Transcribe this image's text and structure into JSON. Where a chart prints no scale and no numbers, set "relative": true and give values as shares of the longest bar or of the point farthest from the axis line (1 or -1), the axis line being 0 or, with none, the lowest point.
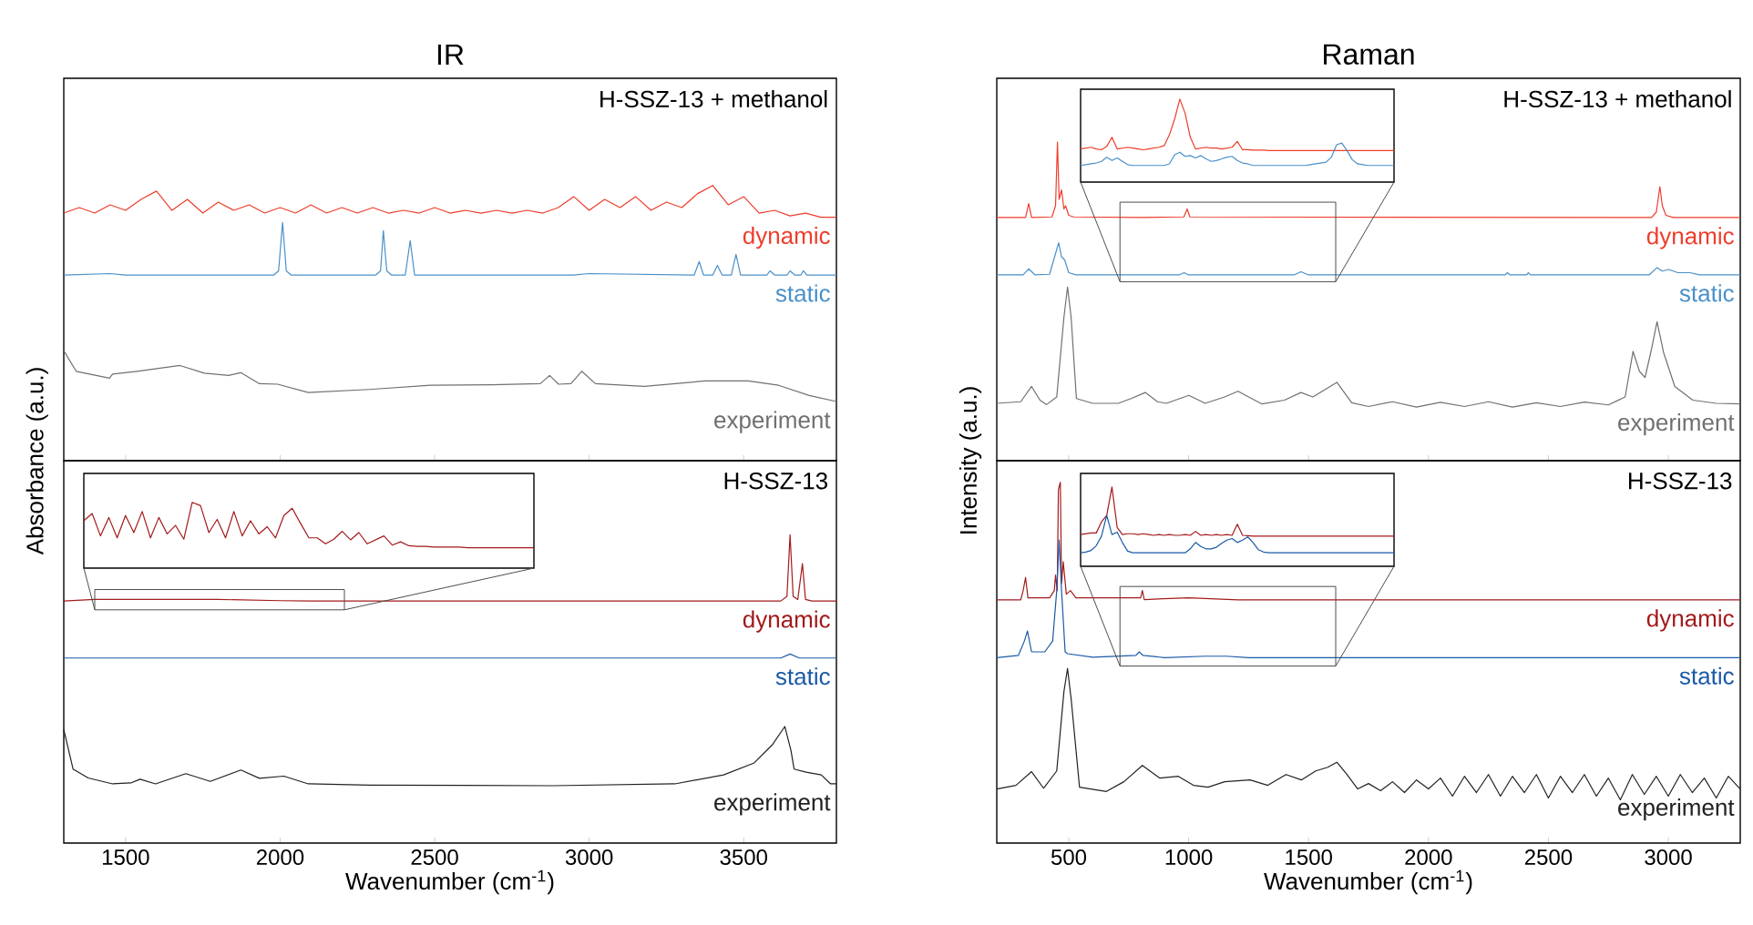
{
  "chart_data": [
    {
      "type": "line",
      "title": "IR",
      "ylabel": "Absorbance (a.u.)",
      "relative": true,
      "xlim": [
        1300,
        3800
      ],
      "xticks": [
        1500,
        2000,
        2500,
        3000,
        3500
      ],
      "tick_labels": false,
      "annotations": [
        "H-SSZ-13 + methanol"
      ],
      "series": [
        {
          "name": "dynamic",
          "color": "#ee3d2b",
          "x": [
            1300,
            1350,
            1400,
            1450,
            1500,
            1550,
            1600,
            1650,
            1700,
            1750,
            1800,
            1850,
            1900,
            1950,
            2000,
            2050,
            2100,
            2150,
            2200,
            2250,
            2300,
            2350,
            2400,
            2450,
            2500,
            2550,
            2600,
            2650,
            2700,
            2750,
            2800,
            2850,
            2900,
            2950,
            3000,
            3050,
            3100,
            3150,
            3200,
            3250,
            3300,
            3350,
            3400,
            3450,
            3500,
            3550,
            3600,
            3650,
            3700,
            3750,
            3800
          ],
          "values": [
            0.9,
            0.92,
            0.9,
            0.93,
            0.91,
            0.95,
            0.98,
            0.91,
            0.95,
            0.9,
            0.94,
            0.91,
            0.93,
            0.9,
            0.92,
            0.9,
            0.93,
            0.9,
            0.92,
            0.9,
            0.92,
            0.9,
            0.91,
            0.9,
            0.92,
            0.9,
            0.91,
            0.9,
            0.91,
            0.9,
            0.91,
            0.9,
            0.92,
            0.96,
            0.91,
            0.95,
            0.92,
            0.96,
            0.91,
            0.94,
            0.92,
            0.97,
            1.0,
            0.93,
            0.96,
            0.9,
            0.91,
            0.89,
            0.9,
            0.885,
            0.885
          ]
        },
        {
          "name": "static",
          "color": "#4a90c8",
          "x": [
            1300,
            1450,
            1500,
            1980,
            1995,
            2008,
            2020,
            2035,
            2310,
            2325,
            2334,
            2345,
            2360,
            2405,
            2421,
            2435,
            2950,
            3000,
            3340,
            3356,
            3370,
            3400,
            3415,
            3430,
            3460,
            3475,
            3490,
            3575,
            3585,
            3600,
            3640,
            3650,
            3665,
            3685,
            3693,
            3705,
            3800
          ],
          "values": [
            0.675,
            0.68,
            0.675,
            0.675,
            0.69,
            0.866,
            0.69,
            0.675,
            0.675,
            0.69,
            0.836,
            0.69,
            0.675,
            0.675,
            0.8,
            0.675,
            0.675,
            0.68,
            0.675,
            0.724,
            0.675,
            0.675,
            0.71,
            0.675,
            0.675,
            0.75,
            0.675,
            0.675,
            0.69,
            0.675,
            0.675,
            0.69,
            0.675,
            0.675,
            0.69,
            0.675,
            0.675
          ]
        },
        {
          "name": "experiment",
          "color": "#707070",
          "x": [
            1300,
            1340,
            1448,
            1458,
            1537,
            1676,
            1755,
            1834,
            1873,
            1933,
            1992,
            2091,
            2289,
            2486,
            2684,
            2842,
            2872,
            2901,
            2941,
            2976,
            3020,
            3178,
            3376,
            3514,
            3613,
            3712,
            3800
          ],
          "values": [
            0.4,
            0.325,
            0.3,
            0.315,
            0.325,
            0.346,
            0.318,
            0.31,
            0.32,
            0.28,
            0.278,
            0.248,
            0.259,
            0.274,
            0.276,
            0.28,
            0.31,
            0.278,
            0.28,
            0.325,
            0.28,
            0.27,
            0.29,
            0.29,
            0.274,
            0.237,
            0.215
          ]
        }
      ]
    },
    {
      "type": "line",
      "title": "Raman",
      "ylabel": "Intensity (a.u.)",
      "relative": true,
      "xlim": [
        200,
        3300
      ],
      "xticks": [
        500,
        1000,
        1500,
        2000,
        2500,
        3000
      ],
      "tick_labels": false,
      "annotations": [
        "H-SSZ-13 + methanol"
      ],
      "series": [
        {
          "name": "dynamic",
          "color": "#ee3d2b",
          "x": [
            200,
            320,
            333,
            345,
            430,
            445,
            453,
            460,
            470,
            480,
            487,
            500,
            520,
            800,
            980,
            994,
            1005,
            2930,
            2950,
            2965,
            2975,
            2990,
            3020,
            3300
          ],
          "values": [
            0.763,
            0.763,
            0.807,
            0.763,
            0.765,
            0.8,
            1.0,
            0.82,
            0.85,
            0.79,
            0.8,
            0.77,
            0.765,
            0.763,
            0.765,
            0.79,
            0.765,
            0.763,
            0.78,
            0.86,
            0.8,
            0.77,
            0.763,
            0.763
          ]
        },
        {
          "name": "static",
          "color": "#4a90c8",
          "x": [
            200,
            310,
            333,
            360,
            420,
            445,
            458,
            470,
            483,
            500,
            530,
            960,
            981,
            1000,
            1440,
            1468,
            1500,
            2320,
            2329,
            2340,
            2410,
            2416,
            2425,
            2920,
            2953,
            2975,
            3002,
            3040,
            3090,
            3130,
            3300
          ],
          "values": [
            0.583,
            0.583,
            0.602,
            0.583,
            0.585,
            0.65,
            0.684,
            0.64,
            0.63,
            0.59,
            0.583,
            0.583,
            0.59,
            0.583,
            0.583,
            0.593,
            0.583,
            0.583,
            0.59,
            0.583,
            0.583,
            0.59,
            0.583,
            0.583,
            0.606,
            0.595,
            0.6,
            0.59,
            0.59,
            0.583,
            0.583
          ]
        },
        {
          "name": "experiment",
          "color": "#707070",
          "x": [
            200,
            300,
            345,
            380,
            408,
            450,
            480,
            495,
            510,
            532,
            600,
            707,
            760,
            819,
            870,
            907,
            1001,
            1069,
            1150,
            1206,
            1250,
            1306,
            1400,
            1468,
            1518,
            1618,
            1680,
            1750,
            1850,
            1950,
            2050,
            2150,
            2250,
            2350,
            2450,
            2550,
            2650,
            2750,
            2820,
            2853,
            2880,
            2903,
            2930,
            2953,
            2980,
            3027,
            3102,
            3200,
            3300
          ],
          "values": [
            0.18,
            0.185,
            0.233,
            0.19,
            0.176,
            0.2,
            0.45,
            0.545,
            0.45,
            0.195,
            0.18,
            0.18,
            0.195,
            0.214,
            0.185,
            0.18,
            0.205,
            0.18,
            0.2,
            0.218,
            0.2,
            0.178,
            0.19,
            0.214,
            0.2,
            0.246,
            0.182,
            0.17,
            0.185,
            0.168,
            0.183,
            0.17,
            0.185,
            0.168,
            0.182,
            0.17,
            0.184,
            0.175,
            0.2,
            0.343,
            0.28,
            0.261,
            0.35,
            0.436,
            0.34,
            0.233,
            0.19,
            0.18,
            0.178
          ]
        }
      ]
    },
    {
      "type": "line",
      "relative": true,
      "tick_labels": false,
      "categories": [
        null,
        null,
        null,
        null,
        null,
        null,
        null,
        null,
        null,
        null,
        null,
        null,
        null,
        null,
        null,
        null,
        null,
        null,
        null,
        null,
        null,
        null,
        null,
        null,
        null,
        null,
        null,
        null,
        null,
        null,
        null,
        null,
        null,
        null,
        null,
        null,
        null,
        null,
        null,
        null,
        null,
        null,
        null,
        null,
        null,
        null,
        null,
        null,
        null,
        null,
        null,
        null,
        null,
        null,
        null,
        null,
        null,
        null,
        null,
        null,
        null
      ],
      "series": [
        {
          "color": "#ee3d2b",
          "values": [
            0.4,
            0.41,
            0.42,
            0.4,
            0.39,
            0.43,
            0.54,
            0.4,
            0.41,
            0.42,
            0.41,
            0.4,
            0.39,
            0.4,
            0.41,
            0.42,
            0.44,
            0.57,
            0.76,
            1.0,
            0.83,
            0.54,
            0.4,
            0.41,
            0.42,
            0.41,
            0.41,
            0.4,
            0.41,
            0.42,
            0.49,
            0.39,
            0.39,
            0.385,
            0.385,
            0.385,
            0.38,
            0.38,
            0.38,
            0.38,
            0.38,
            0.38,
            0.38,
            0.38,
            0.38,
            0.38,
            0.38,
            0.38,
            0.38,
            0.38,
            0.38,
            0.38,
            0.38,
            0.38,
            0.38,
            0.38,
            0.38,
            0.38,
            0.38,
            0.38,
            0.38
          ]
        },
        {
          "color": "#4a90c8",
          "values": [
            0.2,
            0.21,
            0.22,
            0.23,
            0.25,
            0.3,
            0.26,
            0.29,
            0.25,
            0.21,
            0.2,
            0.2,
            0.2,
            0.2,
            0.2,
            0.2,
            0.2,
            0.22,
            0.33,
            0.36,
            0.31,
            0.32,
            0.29,
            0.32,
            0.28,
            0.25,
            0.26,
            0.28,
            0.3,
            0.31,
            0.26,
            0.23,
            0.22,
            0.2,
            0.2,
            0.2,
            0.2,
            0.2,
            0.2,
            0.2,
            0.2,
            0.2,
            0.2,
            0.2,
            0.21,
            0.22,
            0.23,
            0.24,
            0.3,
            0.45,
            0.47,
            0.38,
            0.27,
            0.22,
            0.21,
            0.2,
            0.2,
            0.2,
            0.2,
            0.2,
            0.2
          ]
        }
      ]
    },
    {
      "type": "line",
      "xlabel": "Wavenumber (cm$^{-1}$)",
      "relative": true,
      "xlim": [
        1300,
        3800
      ],
      "xticks": [
        1500,
        2000,
        2500,
        3000,
        3500
      ],
      "tick_labels": "x",
      "annotations": [
        "H-SSZ-13"
      ],
      "series": [
        {
          "name": "dynamic",
          "color": "#a31a1c",
          "x": [
            1300,
            1400,
            1500,
            1600,
            1700,
            1800,
            1900,
            2000,
            2100,
            3620,
            3640,
            3650,
            3660,
            3675,
            3690,
            3700,
            3720,
            3800
          ],
          "values": [
            0.785,
            0.79,
            0.79,
            0.79,
            0.79,
            0.79,
            0.788,
            0.786,
            0.785,
            0.785,
            0.8,
            1.0,
            0.8,
            0.79,
            0.906,
            0.79,
            0.785,
            0.785
          ]
        },
        {
          "name": "static",
          "color": "#1a5aa6",
          "x": [
            1300,
            3620,
            3650,
            3680,
            3800
          ],
          "values": [
            0.6,
            0.6,
            0.613,
            0.6,
            0.6
          ]
        },
        {
          "name": "experiment",
          "color": "#222222",
          "x": [
            1300,
            1330,
            1379,
            1458,
            1517,
            1547,
            1597,
            1695,
            1774,
            1873,
            1933,
            2012,
            2091,
            2289,
            2882,
            3277,
            3435,
            3534,
            3593,
            3633,
            3653,
            3663,
            3702,
            3751,
            3781,
            3800
          ],
          "values": [
            0.368,
            0.24,
            0.211,
            0.192,
            0.195,
            0.207,
            0.192,
            0.225,
            0.2,
            0.237,
            0.21,
            0.217,
            0.192,
            0.188,
            0.186,
            0.192,
            0.221,
            0.26,
            0.319,
            0.378,
            0.3,
            0.24,
            0.23,
            0.221,
            0.192,
            0.192
          ]
        }
      ]
    },
    {
      "type": "line",
      "relative": true,
      "tick_labels": false,
      "categories": [
        null,
        null,
        null,
        null,
        null,
        null,
        null,
        null,
        null,
        null,
        null,
        null,
        null,
        null,
        null,
        null,
        null,
        null,
        null,
        null,
        null,
        null,
        null,
        null,
        null,
        null,
        null,
        null,
        null,
        null,
        null,
        null,
        null,
        null,
        null,
        null,
        null,
        null,
        null,
        null,
        null,
        null,
        null,
        null,
        null,
        null,
        null,
        null,
        null,
        null,
        null,
        null,
        null,
        null,
        null
      ],
      "series": [
        {
          "color": "#a31a1c",
          "values": [
            0.72,
            0.83,
            0.49,
            0.77,
            0.46,
            0.8,
            0.54,
            0.86,
            0.46,
            0.77,
            0.52,
            0.65,
            0.44,
            1.0,
            0.95,
            0.54,
            0.74,
            0.46,
            0.86,
            0.49,
            0.72,
            0.52,
            0.63,
            0.46,
            0.8,
            0.91,
            0.68,
            0.46,
            0.46,
            0.37,
            0.44,
            0.56,
            0.43,
            0.54,
            0.37,
            0.43,
            0.49,
            0.35,
            0.4,
            0.34,
            0.33,
            0.33,
            0.32,
            0.32,
            0.32,
            0.32,
            0.31,
            0.31,
            0.31,
            0.31,
            0.31,
            0.31,
            0.31,
            0.31,
            0.31
          ]
        }
      ]
    },
    {
      "type": "line",
      "xlabel": "Wavenumber (cm$^{-1}$)",
      "relative": true,
      "xlim": [
        200,
        3300
      ],
      "xticks": [
        500,
        1000,
        1500,
        2000,
        2500,
        3000
      ],
      "tick_labels": "x",
      "annotations": [
        "H-SSZ-13"
      ],
      "series": [
        {
          "name": "dynamic",
          "color": "#a31a1c",
          "x": [
            200,
            300,
            310,
            320,
            330,
            420,
            440,
            445,
            452,
            457,
            465,
            470,
            477,
            490,
            507,
            530,
            800,
            807,
            815,
            1000,
            1206,
            3300
          ],
          "values": [
            0.674,
            0.674,
            0.7,
            0.736,
            0.68,
            0.68,
            0.7,
            0.743,
            0.7,
            0.98,
            1.0,
            0.72,
            0.78,
            0.69,
            0.7,
            0.68,
            0.68,
            0.7,
            0.675,
            0.68,
            0.674,
            0.674
          ]
        },
        {
          "name": "static",
          "color": "#1a5aa6",
          "x": [
            200,
            290,
            315,
            328,
            345,
            400,
            433,
            450,
            460,
            470,
            485,
            495,
            600,
            780,
            794,
            810,
            900,
            1069,
            1156,
            1250,
            3300
          ],
          "values": [
            0.514,
            0.52,
            0.56,
            0.588,
            0.53,
            0.53,
            0.56,
            0.7,
            0.84,
            0.7,
            0.53,
            0.525,
            0.515,
            0.52,
            0.53,
            0.52,
            0.514,
            0.518,
            0.518,
            0.514,
            0.514
          ]
        },
        {
          "name": "experiment",
          "color": "#222222",
          "x": [
            200,
            280,
            345,
            395,
            450,
            480,
            495,
            510,
            545,
            657,
            730,
            807,
            880,
            957,
            1020,
            1081,
            1150,
            1256,
            1330,
            1406,
            1470,
            1530,
            1580,
            1618,
            1660,
            1705,
            1750,
            1800,
            1850,
            1900,
            1950,
            2000,
            2050,
            2100,
            2150,
            2200,
            2250,
            2300,
            2350,
            2400,
            2450,
            2500,
            2550,
            2600,
            2650,
            2700,
            2750,
            2800,
            2850,
            2900,
            2950,
            3000,
            3050,
            3100,
            3150,
            3200,
            3250,
            3300
          ],
          "values": [
            0.15,
            0.16,
            0.198,
            0.152,
            0.2,
            0.42,
            0.484,
            0.4,
            0.155,
            0.143,
            0.17,
            0.215,
            0.18,
            0.185,
            0.16,
            0.155,
            0.17,
            0.175,
            0.16,
            0.19,
            0.175,
            0.2,
            0.21,
            0.224,
            0.19,
            0.15,
            0.165,
            0.145,
            0.17,
            0.14,
            0.175,
            0.15,
            0.18,
            0.13,
            0.185,
            0.14,
            0.19,
            0.13,
            0.185,
            0.14,
            0.19,
            0.125,
            0.185,
            0.14,
            0.19,
            0.13,
            0.18,
            0.12,
            0.19,
            0.135,
            0.185,
            0.13,
            0.19,
            0.14,
            0.18,
            0.125,
            0.185,
            0.15
          ]
        }
      ]
    },
    {
      "type": "line",
      "relative": true,
      "tick_labels": false,
      "categories": [
        null,
        null,
        null,
        null,
        null,
        null,
        null,
        null,
        null,
        null,
        null,
        null,
        null,
        null,
        null,
        null,
        null,
        null,
        null,
        null,
        null,
        null,
        null,
        null,
        null,
        null,
        null,
        null,
        null,
        null,
        null,
        null,
        null,
        null,
        null,
        null,
        null,
        null,
        null,
        null,
        null,
        null,
        null,
        null,
        null,
        null,
        null,
        null,
        null,
        null,
        null,
        null,
        null,
        null,
        null,
        null,
        null,
        null,
        null,
        null,
        null
      ],
      "series": [
        {
          "color": "#a31a1c",
          "values": [
            0.4,
            0.41,
            0.42,
            0.42,
            0.56,
            0.64,
            1.0,
            0.49,
            0.4,
            0.41,
            0.41,
            0.4,
            0.41,
            0.4,
            0.39,
            0.4,
            0.39,
            0.4,
            0.39,
            0.39,
            0.4,
            0.39,
            0.44,
            0.39,
            0.4,
            0.39,
            0.4,
            0.39,
            0.4,
            0.39,
            0.53,
            0.39,
            0.385,
            0.38,
            0.38,
            0.38,
            0.38,
            0.38,
            0.38,
            0.38,
            0.38,
            0.38,
            0.38,
            0.38,
            0.38,
            0.38,
            0.38,
            0.38,
            0.38,
            0.38,
            0.38,
            0.38,
            0.38,
            0.38,
            0.38,
            0.38,
            0.38,
            0.38,
            0.38,
            0.38,
            0.38
          ]
        },
        {
          "color": "#1a5aa6",
          "values": [
            0.17,
            0.18,
            0.2,
            0.26,
            0.38,
            0.64,
            0.4,
            0.43,
            0.3,
            0.19,
            0.17,
            0.17,
            0.17,
            0.17,
            0.17,
            0.17,
            0.17,
            0.17,
            0.17,
            0.17,
            0.17,
            0.22,
            0.3,
            0.25,
            0.22,
            0.22,
            0.24,
            0.29,
            0.33,
            0.35,
            0.3,
            0.33,
            0.37,
            0.3,
            0.21,
            0.18,
            0.17,
            0.17,
            0.17,
            0.17,
            0.17,
            0.17,
            0.17,
            0.17,
            0.17,
            0.17,
            0.17,
            0.17,
            0.17,
            0.17,
            0.17,
            0.17,
            0.17,
            0.17,
            0.17,
            0.17,
            0.17,
            0.17,
            0.17,
            0.17,
            0.17
          ]
        }
      ]
    }
  ]
}
